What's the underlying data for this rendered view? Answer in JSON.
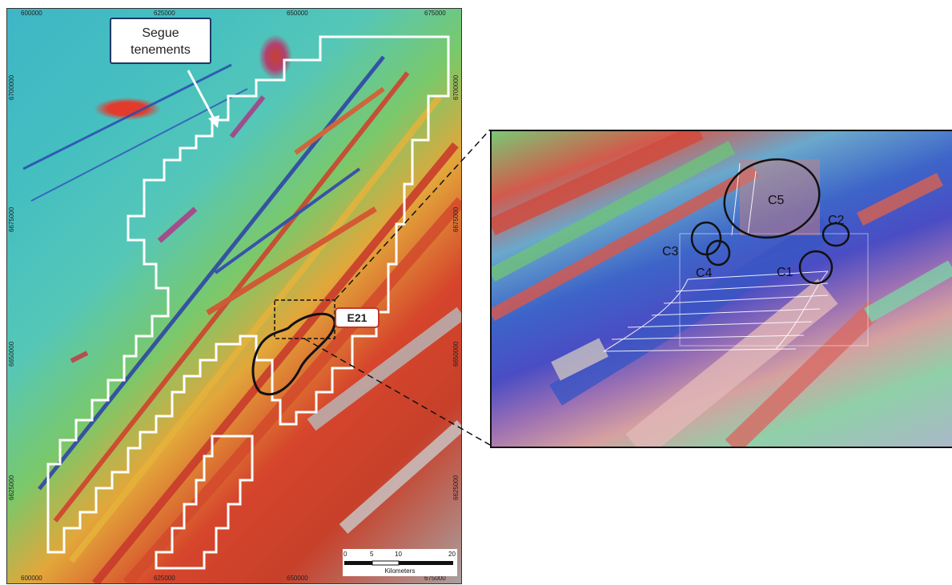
{
  "callouts": {
    "segue": "Segue tenements",
    "e21": "E21"
  },
  "axis": {
    "top": [
      "600000",
      "625000",
      "650000",
      "675000"
    ],
    "bottom": [
      "600000",
      "625000",
      "650000",
      "675000"
    ],
    "left": [
      "6700000",
      "6675000",
      "6650000",
      "6625000"
    ],
    "right": [
      "6700000",
      "6675000",
      "6650000",
      "6625000"
    ]
  },
  "scalebar": {
    "ticks": [
      "0",
      "5",
      "10",
      "20"
    ],
    "unit": "Kilometers"
  },
  "zoom_targets": [
    "C1",
    "C2",
    "C3",
    "C4",
    "C5"
  ],
  "colors": {
    "tenement_outline": "#ffffff",
    "e21_outline": "#111111",
    "e21_callout_border": "#c0392b",
    "segue_callout_border": "#1f3864"
  }
}
